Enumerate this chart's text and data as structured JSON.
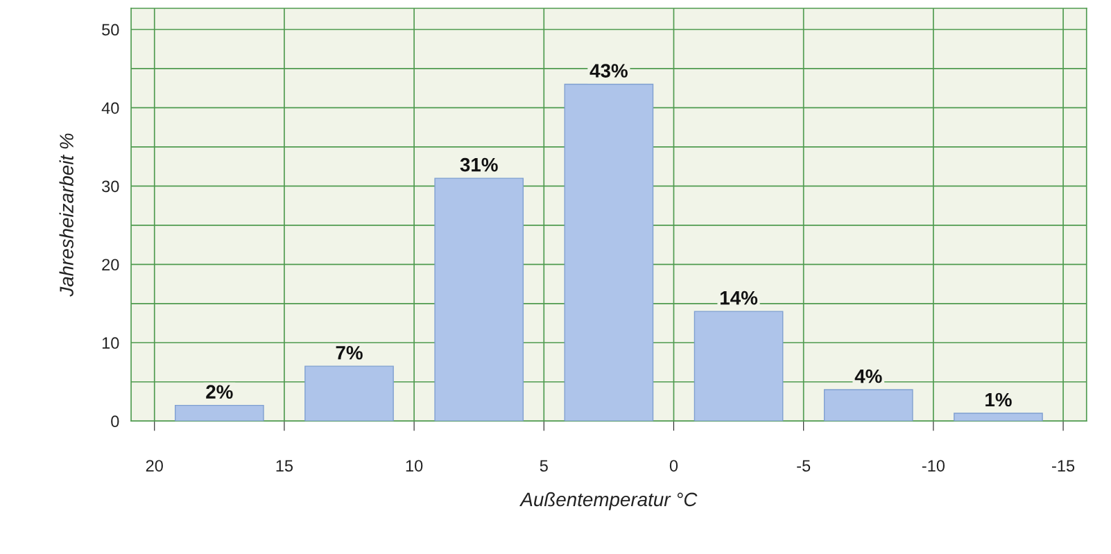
{
  "chart_data": {
    "type": "histogram",
    "xlabel": "Außentemperatur °C",
    "ylabel": "Jahresheizarbeit %",
    "bins": [
      20,
      15,
      10,
      5,
      0,
      -5,
      -10,
      -15
    ],
    "values": [
      2,
      7,
      31,
      43,
      14,
      4,
      1
    ],
    "value_labels": [
      "2%",
      "7%",
      "31%",
      "43%",
      "14%",
      "4%",
      "1%"
    ],
    "color": "#aec4ea",
    "xlim": [
      20.9,
      -15.9
    ],
    "xticks": [
      20,
      15,
      10,
      5,
      0,
      -5,
      -10,
      -15
    ],
    "ylim": [
      0,
      52.7
    ],
    "yticks": [
      0,
      10,
      20,
      30,
      40,
      50
    ],
    "grid": true
  }
}
